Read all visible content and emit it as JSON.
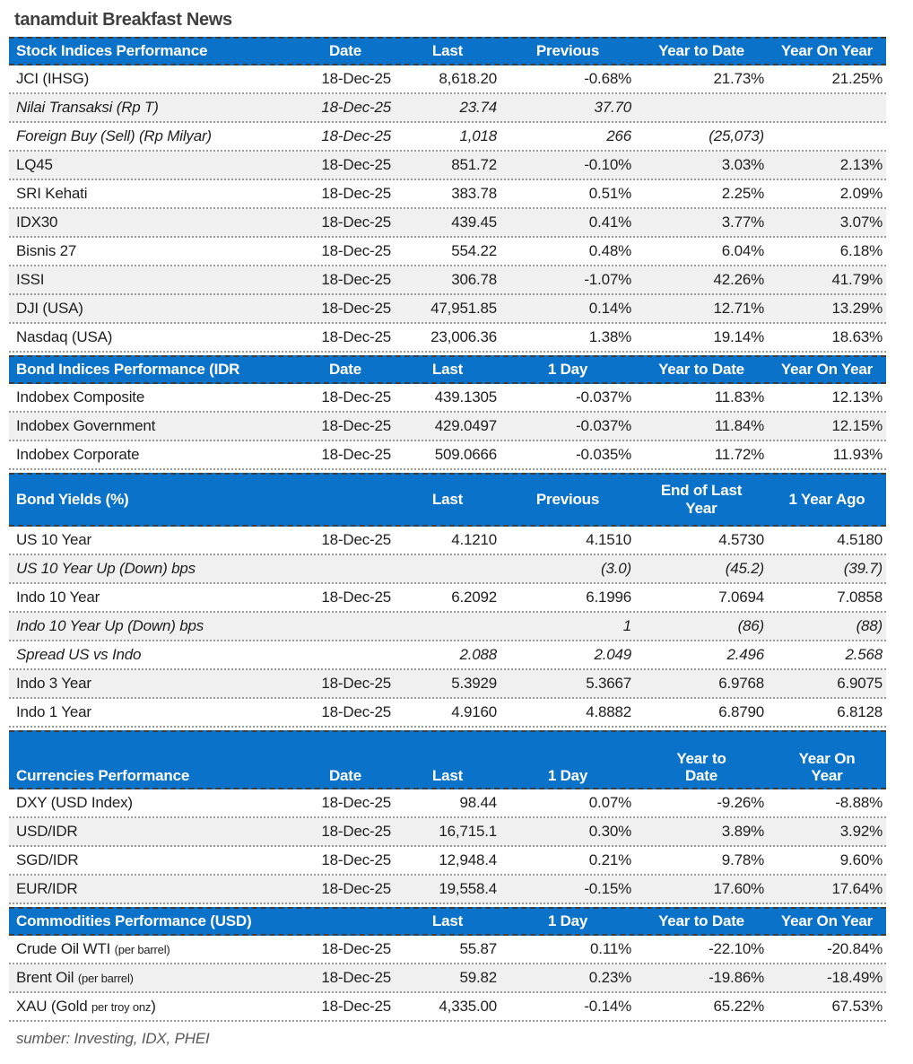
{
  "title": "tanamduit Breakfast News",
  "source": "sumber: Investing, IDX, PHEI",
  "colors": {
    "header_bg": "#0a72c8",
    "header_text": "#ffffff",
    "shaded_row": "#f0f0f0",
    "body_text": "#1f1f1f"
  },
  "tables": [
    {
      "name": "stock-indices",
      "header": {
        "label": "Stock Indices Performance",
        "cols": [
          "Date",
          "Last",
          "Previous",
          "Year to Date",
          "Year On Year"
        ]
      },
      "rows": [
        {
          "label": "JCI (IHSG)",
          "cells": [
            "18-Dec-25",
            "8,618.20",
            "-0.68%",
            "21.73%",
            "21.25%"
          ],
          "italic": false,
          "shaded": false
        },
        {
          "label": "Nilai Transaksi (Rp T)",
          "cells": [
            "18-Dec-25",
            "23.74",
            "37.70",
            "",
            ""
          ],
          "italic": true,
          "shaded": true
        },
        {
          "label": "Foreign Buy (Sell) (Rp Milyar)",
          "cells": [
            "18-Dec-25",
            "1,018",
            "266",
            "(25,073)",
            ""
          ],
          "italic": true,
          "shaded": false
        },
        {
          "label": "LQ45",
          "cells": [
            "18-Dec-25",
            "851.72",
            "-0.10%",
            "3.03%",
            "2.13%"
          ],
          "italic": false,
          "shaded": true
        },
        {
          "label": "SRI Kehati",
          "cells": [
            "18-Dec-25",
            "383.78",
            "0.51%",
            "2.25%",
            "2.09%"
          ],
          "italic": false,
          "shaded": false
        },
        {
          "label": "IDX30",
          "cells": [
            "18-Dec-25",
            "439.45",
            "0.41%",
            "3.77%",
            "3.07%"
          ],
          "italic": false,
          "shaded": true
        },
        {
          "label": "Bisnis 27",
          "cells": [
            "18-Dec-25",
            "554.22",
            "0.48%",
            "6.04%",
            "6.18%"
          ],
          "italic": false,
          "shaded": false
        },
        {
          "label": "ISSI",
          "cells": [
            "18-Dec-25",
            "306.78",
            "-1.07%",
            "42.26%",
            "41.79%"
          ],
          "italic": false,
          "shaded": true
        },
        {
          "label": "DJI (USA)",
          "cells": [
            "18-Dec-25",
            "47,951.85",
            "0.14%",
            "12.71%",
            "13.29%"
          ],
          "italic": false,
          "shaded": true
        },
        {
          "label": "Nasdaq (USA)",
          "cells": [
            "18-Dec-25",
            "23,006.36",
            "1.38%",
            "19.14%",
            "18.63%"
          ],
          "italic": false,
          "shaded": false
        }
      ]
    },
    {
      "name": "bond-indices",
      "header": {
        "label": "Bond Indices Performance (IDR",
        "cols": [
          "Date",
          "Last",
          "1 Day",
          "Year to Date",
          "Year On Year"
        ]
      },
      "rows": [
        {
          "label": "Indobex Composite",
          "cells": [
            "18-Dec-25",
            "439.1305",
            "-0.037%",
            "11.83%",
            "12.13%"
          ],
          "italic": false,
          "shaded": false
        },
        {
          "label": "Indobex Government",
          "cells": [
            "18-Dec-25",
            "429.0497",
            "-0.037%",
            "11.84%",
            "12.15%"
          ],
          "italic": false,
          "shaded": true
        },
        {
          "label": "Indobex Corporate",
          "cells": [
            "18-Dec-25",
            "509.0666",
            "-0.035%",
            "11.72%",
            "11.93%"
          ],
          "italic": false,
          "shaded": false
        }
      ]
    },
    {
      "name": "bond-yields",
      "header": {
        "label": "Bond Yields (%)",
        "cols": [
          "",
          "Last",
          "Previous",
          "End of Last\nYear",
          "1 Year Ago"
        ]
      },
      "rows": [
        {
          "label": "US 10 Year",
          "cells": [
            "18-Dec-25",
            "4.1210",
            "4.1510",
            "4.5730",
            "4.5180"
          ],
          "italic": false,
          "shaded": false
        },
        {
          "label": "US 10 Year Up (Down) bps",
          "cells": [
            "",
            "",
            "(3.0)",
            "(45.2)",
            "(39.7)"
          ],
          "italic": true,
          "shaded": true
        },
        {
          "label": "Indo 10 Year",
          "cells": [
            "18-Dec-25",
            "6.2092",
            "6.1996",
            "7.0694",
            "7.0858"
          ],
          "italic": false,
          "shaded": false
        },
        {
          "label": "Indo 10 Year Up (Down) bps",
          "cells": [
            "",
            "",
            "1",
            "(86)",
            "(88)"
          ],
          "italic": true,
          "shaded": true
        },
        {
          "label": "Spread US vs Indo",
          "cells": [
            "",
            "2.088",
            "2.049",
            "2.496",
            "2.568"
          ],
          "italic": true,
          "shaded": false
        },
        {
          "label": "Indo 3 Year",
          "cells": [
            "18-Dec-25",
            "5.3929",
            "5.3667",
            "6.9768",
            "6.9075"
          ],
          "italic": false,
          "shaded": true
        },
        {
          "label": "Indo 1 Year",
          "cells": [
            "18-Dec-25",
            "4.9160",
            "4.8882",
            "6.8790",
            "6.8128"
          ],
          "italic": false,
          "shaded": false
        }
      ]
    },
    {
      "name": "currencies",
      "header": {
        "label": "Currencies Performance",
        "cols": [
          "Date",
          "Last",
          "1 Day",
          "Year to\nDate",
          "Year On\nYear"
        ]
      },
      "rows": [
        {
          "label": "DXY (USD Index)",
          "cells": [
            "18-Dec-25",
            "98.44",
            "0.07%",
            "-9.26%",
            "-8.88%"
          ],
          "italic": false,
          "shaded": false
        },
        {
          "label": "USD/IDR",
          "cells": [
            "18-Dec-25",
            "16,715.1",
            "0.30%",
            "3.89%",
            "3.92%"
          ],
          "italic": false,
          "shaded": true
        },
        {
          "label": "SGD/IDR",
          "cells": [
            "18-Dec-25",
            "12,948.4",
            "0.21%",
            "9.78%",
            "9.60%"
          ],
          "italic": false,
          "shaded": false
        },
        {
          "label": "EUR/IDR",
          "cells": [
            "18-Dec-25",
            "19,558.4",
            "-0.15%",
            "17.60%",
            "17.64%"
          ],
          "italic": false,
          "shaded": true
        }
      ]
    },
    {
      "name": "commodities",
      "header": {
        "label": "Commodities Performance (USD)",
        "cols": [
          "",
          "Last",
          "1 Day",
          "Year to Date",
          "Year On Year"
        ]
      },
      "rows": [
        {
          "label_parts": [
            {
              "t": "Crude Oil WTI ",
              "small": false
            },
            {
              "t": "(per barrel)",
              "small": true
            }
          ],
          "cells": [
            "18-Dec-25",
            "55.87",
            "0.11%",
            "-22.10%",
            "-20.84%"
          ],
          "italic": false,
          "shaded": false
        },
        {
          "label_parts": [
            {
              "t": "Brent Oil ",
              "small": false
            },
            {
              "t": "(per barrel)",
              "small": true
            }
          ],
          "cells": [
            "18-Dec-25",
            "59.82",
            "0.23%",
            "-19.86%",
            "-18.49%"
          ],
          "italic": false,
          "shaded": true
        },
        {
          "label_parts": [
            {
              "t": "XAU (Gold ",
              "small": false
            },
            {
              "t": "per troy onz",
              "small": true
            },
            {
              "t": ")",
              "small": false
            }
          ],
          "cells": [
            "18-Dec-25",
            "4,335.00",
            "-0.14%",
            "65.22%",
            "67.53%"
          ],
          "italic": false,
          "shaded": false
        }
      ]
    }
  ]
}
